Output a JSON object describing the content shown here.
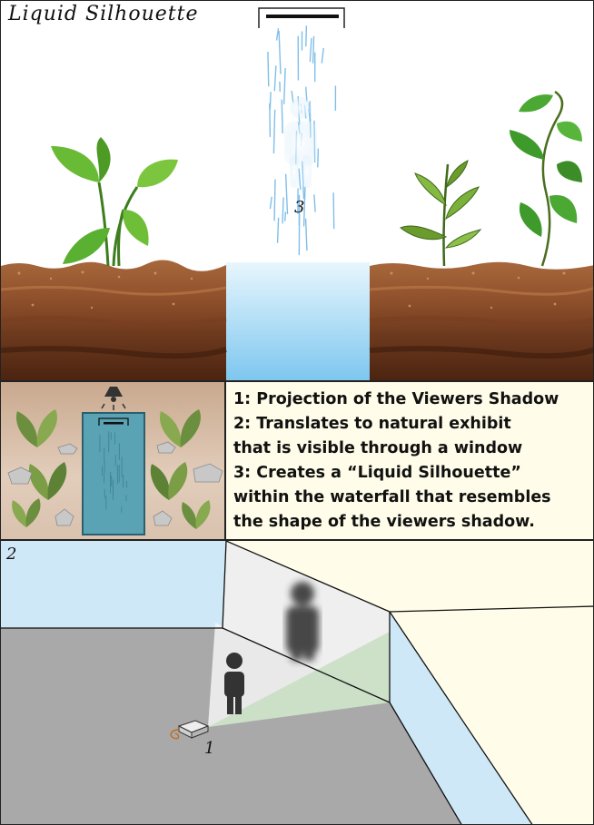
{
  "title": "Liquid Silhouette",
  "labels": {
    "waterfall_step": "3",
    "room_step": "2",
    "projector_step": "1"
  },
  "description": [
    "1: Projection of the Viewers Shadow",
    "2: Translates to natural exhibit",
    "that is visible through a window",
    "3: Creates a “Liquid Silhouette”",
    "within the waterfall that resembles",
    "the shape of the viewers shadow."
  ],
  "colors": {
    "water": "#8fd0f2",
    "soil_top": "#9a5a32",
    "soil_dark": "#5a2e17",
    "leaf": "#5ab030",
    "floor": "#a9a9a9",
    "window_wall": "#cfe8f7",
    "exhibit_bg": "#fffde9",
    "projection": "#c8dfc3"
  },
  "icons": [
    "lamp-icon",
    "person-icon",
    "projector-icon",
    "leaf-icon",
    "rock-icon",
    "waterfall-icon"
  ]
}
